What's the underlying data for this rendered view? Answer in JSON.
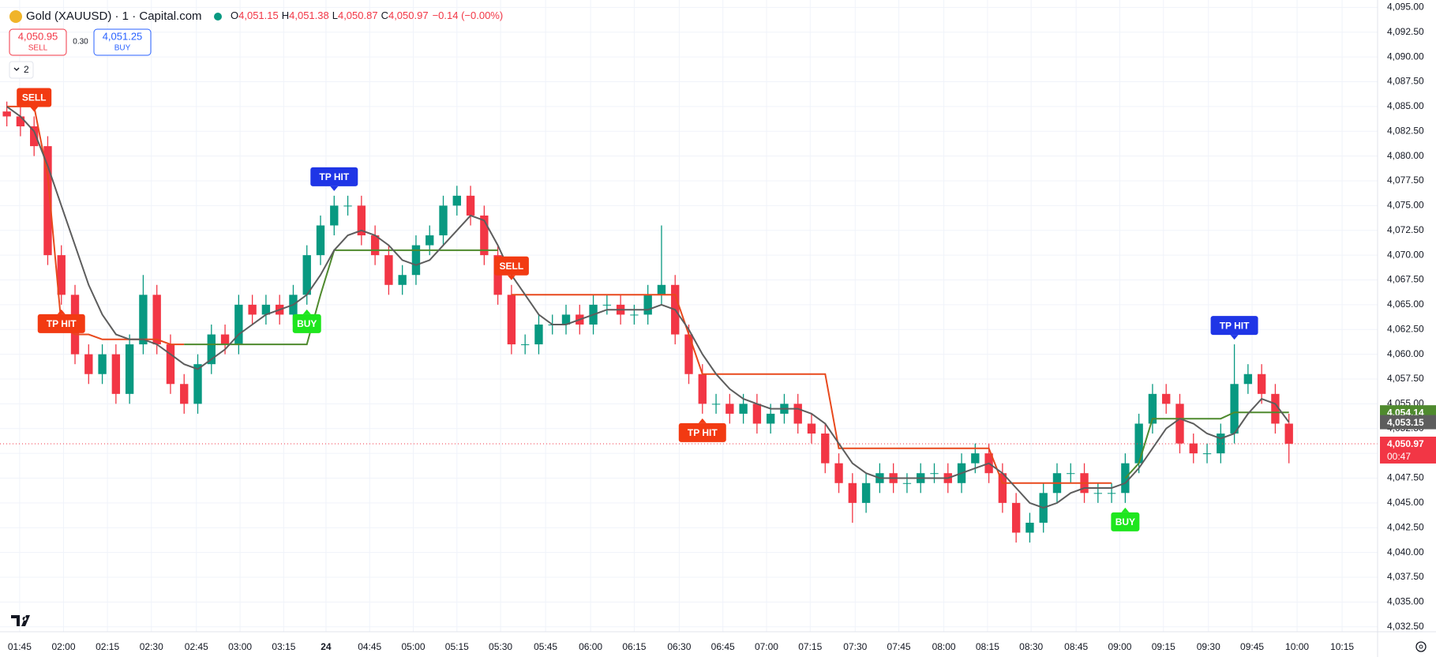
{
  "header": {
    "symbol": "Gold (XAUUSD) · 1 · Capital.com",
    "ohlc": [
      {
        "key": "O",
        "value": "4,051.15"
      },
      {
        "key": "H",
        "value": "4,051.38"
      },
      {
        "key": "L",
        "value": "4,050.87"
      },
      {
        "key": "C",
        "value": "4,050.97"
      }
    ],
    "change": "−0.14 (−0.00%)",
    "sell_price": "4,050.95",
    "sell_label": "SELL",
    "spread": "0.30",
    "buy_price": "4,051.25",
    "buy_label": "BUY",
    "indicators_count": "2"
  },
  "chart_data": {
    "type": "candlestick",
    "up_color": "#089981",
    "down_color": "#f23645",
    "grid": true,
    "xlim": [
      -0.5,
      100.5
    ],
    "xticks": [
      {
        "value": 0.94,
        "label": "01:45"
      },
      {
        "value": 4.16,
        "label": "02:00"
      },
      {
        "value": 7.38,
        "label": "02:15"
      },
      {
        "value": 10.6,
        "label": "02:30"
      },
      {
        "value": 13.9,
        "label": "02:45"
      },
      {
        "value": 17.1,
        "label": "03:00"
      },
      {
        "value": 20.3,
        "label": "03:15"
      },
      {
        "value": 23.4,
        "label": "24"
      },
      {
        "value": 26.6,
        "label": "04:45"
      },
      {
        "value": 29.8,
        "label": "05:00"
      },
      {
        "value": 33.0,
        "label": "05:15"
      },
      {
        "value": 36.2,
        "label": "05:30"
      },
      {
        "value": 39.5,
        "label": "05:45"
      },
      {
        "value": 42.8,
        "label": "06:00"
      },
      {
        "value": 46.0,
        "label": "06:15"
      },
      {
        "value": 49.3,
        "label": "06:30"
      },
      {
        "value": 52.5,
        "label": "06:45"
      },
      {
        "value": 55.7,
        "label": "07:00"
      },
      {
        "value": 58.9,
        "label": "07:15"
      },
      {
        "value": 62.2,
        "label": "07:30"
      },
      {
        "value": 65.4,
        "label": "07:45"
      },
      {
        "value": 68.7,
        "label": "08:00"
      },
      {
        "value": 71.9,
        "label": "08:15"
      },
      {
        "value": 75.1,
        "label": "08:30"
      },
      {
        "value": 78.4,
        "label": "08:45"
      },
      {
        "value": 81.6,
        "label": "09:00"
      },
      {
        "value": 84.8,
        "label": "09:15"
      },
      {
        "value": 88.1,
        "label": "09:30"
      },
      {
        "value": 91.3,
        "label": "09:45"
      },
      {
        "value": 94.6,
        "label": "10:00"
      },
      {
        "value": 97.9,
        "label": "10:15"
      }
    ],
    "ylim": [
      4032,
      4095.75
    ],
    "yticks": [
      {
        "value": 4032.5,
        "label": "4,032.50"
      },
      {
        "value": 4035,
        "label": "4,035.00"
      },
      {
        "value": 4037.5,
        "label": "4,037.50"
      },
      {
        "value": 4040,
        "label": "4,040.00"
      },
      {
        "value": 4042.5,
        "label": "4,042.50"
      },
      {
        "value": 4045,
        "label": "4,045.00"
      },
      {
        "value": 4047.5,
        "label": "4,047.50"
      },
      {
        "value": 4050,
        "label": "4,050.00"
      },
      {
        "value": 4052.5,
        "label": "4,052.50"
      },
      {
        "value": 4055,
        "label": "4,055.00"
      },
      {
        "value": 4057.5,
        "label": "4,057.50"
      },
      {
        "value": 4060,
        "label": "4,060.00"
      },
      {
        "value": 4062.5,
        "label": "4,062.50"
      },
      {
        "value": 4065,
        "label": "4,065.00"
      },
      {
        "value": 4067.5,
        "label": "4,067.50"
      },
      {
        "value": 4070,
        "label": "4,070.00"
      },
      {
        "value": 4072.5,
        "label": "4,072.50"
      },
      {
        "value": 4075,
        "label": "4,075.00"
      },
      {
        "value": 4077.5,
        "label": "4,077.50"
      },
      {
        "value": 4080,
        "label": "4,080.00"
      },
      {
        "value": 4082.5,
        "label": "4,082.50"
      },
      {
        "value": 4085,
        "label": "4,085.00"
      },
      {
        "value": 4087.5,
        "label": "4,087.50"
      },
      {
        "value": 4090,
        "label": "4,090.00"
      },
      {
        "value": 4092.5,
        "label": "4,092.50"
      },
      {
        "value": 4095,
        "label": "4,095.00"
      }
    ],
    "open": [
      4084.5,
      4084,
      4083,
      4081,
      4070,
      4066,
      4060,
      4058,
      4060,
      4056,
      4061,
      4066,
      4061,
      4057,
      4055,
      4059,
      4062,
      4061,
      4065,
      4064,
      4065,
      4064,
      4066,
      4070,
      4073,
      4075,
      4075,
      4072,
      4070,
      4067,
      4068,
      4071,
      4072,
      4075,
      4076,
      4074,
      4070,
      4066,
      4061,
      4061,
      4063,
      4063,
      4064,
      4063,
      4065,
      4065,
      4064,
      4064,
      4066,
      4067,
      4062,
      4058,
      4055,
      4055,
      4054,
      4055,
      4053,
      4054,
      4055,
      4053,
      4052,
      4049,
      4047,
      4045,
      4047,
      4048,
      4047,
      4047,
      4048,
      4048,
      4047,
      4049,
      4050,
      4048,
      4045,
      4042,
      4043,
      4046,
      4048,
      4048,
      4046,
      4046,
      4046,
      4049,
      4053,
      4056,
      4055,
      4051,
      4050,
      4050,
      4052,
      4057,
      4058,
      4056,
      4053
    ],
    "high": [
      4085.5,
      4085,
      4084,
      4082,
      4071,
      4067,
      4061,
      4061,
      4061,
      4062,
      4068,
      4067,
      4062,
      4058,
      4060,
      4063,
      4063,
      4066,
      4066,
      4066,
      4066,
      4067,
      4071,
      4074,
      4076,
      4076,
      4076,
      4073,
      4071,
      4069,
      4072,
      4073,
      4076,
      4077,
      4077,
      4075,
      4071,
      4067,
      4062,
      4064,
      4064,
      4065,
      4065,
      4066,
      4066,
      4066,
      4065,
      4067,
      4073,
      4068,
      4063,
      4059,
      4056,
      4056,
      4056,
      4056,
      4055,
      4056,
      4056,
      4054,
      4053,
      4050,
      4048,
      4048,
      4049,
      4049,
      4048,
      4049,
      4049,
      4049,
      4050,
      4051,
      4051,
      4049,
      4046,
      4044,
      4047,
      4049,
      4049,
      4049,
      4047,
      4047,
      4050,
      4054,
      4057,
      4057,
      4056,
      4052,
      4051,
      4053,
      4061,
      4059,
      4059,
      4057,
      4054
    ],
    "low": [
      4083,
      4082,
      4080,
      4069,
      4065,
      4059,
      4057,
      4057,
      4055,
      4055,
      4060,
      4060,
      4056,
      4054,
      4054,
      4058,
      4060,
      4060,
      4063,
      4063,
      4063,
      4063,
      4065,
      4069,
      4072,
      4074,
      4071,
      4069,
      4066,
      4066,
      4067,
      4070,
      4071,
      4074,
      4073,
      4069,
      4065,
      4060,
      4060,
      4060,
      4062,
      4062,
      4062,
      4062,
      4064,
      4063,
      4063,
      4063,
      4065,
      4061,
      4057,
      4054,
      4054,
      4053,
      4053,
      4052,
      4052,
      4053,
      4052,
      4051,
      4048,
      4046,
      4043,
      4044,
      4046,
      4046,
      4046,
      4046,
      4047,
      4046,
      4046,
      4048,
      4047,
      4044,
      4041,
      4041,
      4042,
      4045,
      4047,
      4045,
      4045,
      4045,
      4045,
      4048,
      4052,
      4054,
      4050,
      4049,
      4049,
      4049,
      4051,
      4056,
      4055,
      4052,
      4049
    ],
    "close": [
      4084,
      4083,
      4081,
      4070,
      4066,
      4060,
      4058,
      4060,
      4056,
      4061,
      4066,
      4061,
      4057,
      4055,
      4059,
      4062,
      4061,
      4065,
      4064,
      4065,
      4064,
      4066,
      4070,
      4073,
      4075,
      4075,
      4072,
      4070,
      4067,
      4068,
      4071,
      4072,
      4075,
      4076,
      4074,
      4070,
      4066,
      4061,
      4061,
      4063,
      4063,
      4064,
      4063,
      4065,
      4065,
      4064,
      4064,
      4066,
      4067,
      4062,
      4058,
      4055,
      4055,
      4054,
      4055,
      4053,
      4054,
      4055,
      4053,
      4052,
      4049,
      4047,
      4045,
      4047,
      4048,
      4047,
      4047,
      4048,
      4048,
      4047,
      4049,
      4050,
      4048,
      4045,
      4042,
      4043,
      4046,
      4048,
      4048,
      4046,
      4046,
      4046,
      4049,
      4053,
      4056,
      4055,
      4051,
      4050,
      4050,
      4052,
      4057,
      4058,
      4056,
      4053,
      4050.97
    ],
    "lines": [
      {
        "color": "#e8491d",
        "values": [
          4085,
          4085,
          4085,
          4078,
          4063,
          4062,
          4062,
          4061.5,
          4061.5,
          4061.5,
          4061.5,
          4061.5,
          4061,
          4061,
          null,
          null,
          null,
          null,
          null,
          null,
          null,
          null,
          null,
          null,
          null,
          null,
          null,
          null,
          null,
          null,
          null,
          null,
          null,
          null,
          null,
          null,
          null,
          4066,
          4066,
          4066,
          4066,
          4066,
          4066,
          4066,
          4066,
          4066,
          4066,
          4066,
          4066,
          4066,
          4062,
          4058,
          4058,
          4058,
          4058,
          4058,
          4058,
          4058,
          4058,
          4058,
          4058,
          4050.5,
          4050.5,
          4050.5,
          4050.5,
          4050.5,
          4050.5,
          4050.5,
          4050.5,
          4050.5,
          4050.5,
          4050.5,
          4050.5,
          4047,
          4047,
          4047,
          4047,
          4047,
          4047,
          4047,
          4047,
          4047,
          null,
          null,
          null,
          null,
          null,
          null,
          null,
          null,
          null,
          null,
          null,
          null,
          null
        ]
      },
      {
        "color": "#4f8a2e",
        "values": [
          null,
          null,
          null,
          null,
          null,
          null,
          null,
          null,
          null,
          null,
          null,
          null,
          null,
          4061,
          4061,
          4061,
          4061,
          4061,
          4061,
          4061,
          4061,
          4061,
          4061,
          4066,
          4070.5,
          4070.5,
          4070.5,
          4070.5,
          4070.5,
          4070.5,
          4070.5,
          4070.5,
          4070.5,
          4070.5,
          4070.5,
          4070.5,
          4070.5,
          null,
          null,
          null,
          null,
          null,
          null,
          null,
          null,
          null,
          null,
          null,
          null,
          null,
          null,
          null,
          null,
          null,
          null,
          null,
          null,
          null,
          null,
          null,
          null,
          null,
          null,
          null,
          null,
          null,
          null,
          null,
          null,
          null,
          null,
          null,
          null,
          null,
          null,
          null,
          null,
          null,
          null,
          null,
          null,
          null,
          4047.5,
          4049,
          4053.5,
          4053.5,
          4053.5,
          4053.5,
          4053.5,
          4053.5,
          4054.14,
          4054.14,
          4054.14,
          4054.14,
          4054.14
        ]
      },
      {
        "color": "#5d5d5d",
        "values": [
          4085,
          4084,
          4082.5,
          4079,
          4075,
          4071,
          4067,
          4064,
          4062,
          4061.5,
          4061.5,
          4061,
          4060,
          4059,
          4058.5,
          4059.5,
          4060.5,
          4062,
          4063,
          4064,
          4064.5,
          4065,
          4066,
          4068,
          4070.5,
          4072,
          4072.5,
          4072,
          4071,
          4069.5,
          4069,
          4069.5,
          4071,
          4072.5,
          4074,
          4073.5,
          4071,
          4068,
          4066,
          4064,
          4063,
          4063,
          4063.5,
          4064,
          4064.5,
          4064.5,
          4064.5,
          4064.5,
          4065,
          4064.5,
          4062.5,
          4060,
          4058,
          4056.5,
          4055.5,
          4055,
          4054.5,
          4054.5,
          4054.5,
          4054,
          4053,
          4051,
          4049,
          4048,
          4047.5,
          4047.5,
          4047.5,
          4047.5,
          4047.5,
          4047.5,
          4048,
          4048.5,
          4049,
          4048,
          4046.5,
          4045,
          4044.5,
          4045,
          4046,
          4046.5,
          4046.5,
          4046.5,
          4047,
          4048.5,
          4050.5,
          4052.5,
          4053.5,
          4053,
          4052,
          4051.5,
          4052,
          4054,
          4055.5,
          4055,
          4053.15
        ]
      }
    ],
    "signals": [
      {
        "text": "SELL",
        "candle": 2,
        "side": "above",
        "color": "#f23a12"
      },
      {
        "text": "TP HIT",
        "candle": 4,
        "side": "below",
        "color": "#f23a12"
      },
      {
        "text": "BUY",
        "candle": 22,
        "side": "below",
        "color": "#1ee61e"
      },
      {
        "text": "TP HIT",
        "candle": 24,
        "side": "above",
        "color": "#1f35e6"
      },
      {
        "text": "SELL",
        "candle": 37,
        "side": "above",
        "color": "#f23a12"
      },
      {
        "text": "TP HIT",
        "candle": 51,
        "side": "below",
        "color": "#f23a12"
      },
      {
        "text": "BUY",
        "candle": 82,
        "side": "below",
        "color": "#1ee61e"
      },
      {
        "text": "TP HIT",
        "candle": 90,
        "side": "above",
        "color": "#1f35e6"
      }
    ],
    "price_labels": [
      {
        "value": 4054.14,
        "label": "4,054.14",
        "color": "#4f8a2e"
      },
      {
        "value": 4053.15,
        "label": "4,053.15",
        "color": "#5d5d5d"
      }
    ],
    "last_price": {
      "value": 4050.97,
      "label": "4,050.97",
      "countdown": "00:47",
      "color": "#f23645"
    }
  }
}
